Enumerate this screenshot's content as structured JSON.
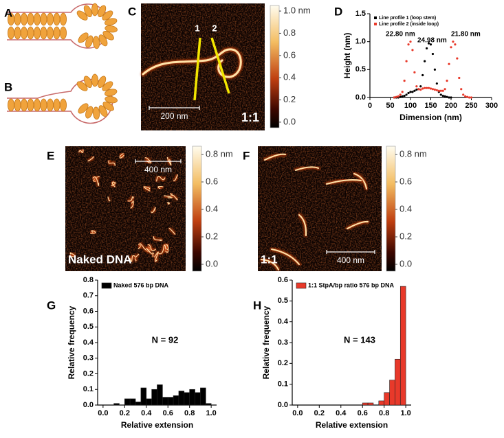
{
  "panel_labels": [
    "A",
    "B",
    "C",
    "D",
    "E",
    "F",
    "G",
    "H"
  ],
  "images": [
    {
      "labels": [
        "1",
        "2",
        "1:1"
      ],
      "scale_bar": "200 nm",
      "clim": [
        -0.05,
        1.05
      ],
      "colorbar_ticks": [
        {
          "value": 1.0,
          "label": "1.0 nm"
        },
        0.8,
        0.6,
        0.4,
        0.2,
        {
          "value": 0,
          "label": "0.0"
        }
      ]
    },
    {
      "labels": [
        "Naked DNA"
      ],
      "scale_bar": "400 nm",
      "clim": [
        -0.05,
        0.86
      ],
      "colorbar_ticks": [
        {
          "value": 0.8,
          "label": "0.8 nm"
        },
        0.6,
        0.4,
        0.2,
        {
          "value": 0,
          "label": "0.0"
        }
      ]
    },
    {
      "labels": [
        "1:1"
      ],
      "scale_bar": "400 nm",
      "clim": [
        -0.05,
        0.86
      ],
      "colorbar_ticks": [
        {
          "value": 0.8,
          "label": "0.8 nm"
        },
        0.6,
        0.4,
        0.2,
        {
          "value": 0,
          "label": "0.0"
        }
      ]
    }
  ],
  "chart_data": [
    {
      "type": "scatter",
      "xlabel": "Dimension (nm)",
      "ylabel": "Height (nm)",
      "xlim": [
        0,
        300
      ],
      "xticks": [
        0,
        50,
        100,
        150,
        200,
        250,
        300
      ],
      "ylim": [
        0,
        1.5
      ],
      "yticks": [
        {
          "value": 0,
          "label": "0.0"
        },
        0.5,
        {
          "value": 1,
          "label": "1.0"
        },
        1.5
      ],
      "annotations": [
        "22.80 nm",
        "24.98 nm",
        "21.80 nm"
      ],
      "series": [
        {
          "name": "Line profile 1 (loop stem)",
          "color": "#000000",
          "x": [
            60,
            65,
            70,
            75,
            80,
            85,
            90,
            95,
            100,
            105,
            110,
            115,
            120,
            125,
            130,
            135,
            140,
            145,
            150,
            155,
            160,
            165,
            170,
            175,
            180,
            185,
            190,
            195,
            200
          ],
          "values": [
            0,
            0,
            0,
            0.01,
            0.02,
            0.03,
            0.05,
            0.08,
            0.1,
            0.1,
            0.12,
            0.14,
            0.15,
            0.2,
            0.4,
            0.65,
            0.88,
            0.97,
            0.95,
            0.78,
            0.5,
            0.25,
            0.1,
            0.05,
            0.03,
            0.02,
            0.01,
            0,
            0
          ]
        },
        {
          "name": "Line profile 2 (inside loop)",
          "color": "#e8392a",
          "x": [
            60,
            65,
            70,
            75,
            80,
            85,
            90,
            95,
            100,
            105,
            110,
            115,
            120,
            125,
            130,
            135,
            140,
            145,
            150,
            155,
            160,
            165,
            170,
            175,
            180,
            185,
            190,
            195,
            200,
            205,
            210,
            215,
            220,
            225,
            230,
            235,
            240,
            245,
            250
          ],
          "values": [
            0,
            0.01,
            0.02,
            0.05,
            0.1,
            0.3,
            0.65,
            0.95,
            1.0,
            0.85,
            0.45,
            0.2,
            0.15,
            0.14,
            0.16,
            0.17,
            0.17,
            0.17,
            0.16,
            0.15,
            0.14,
            0.13,
            0.12,
            0.12,
            0.12,
            0.15,
            0.3,
            0.6,
            0.9,
            1.0,
            0.95,
            0.7,
            0.35,
            0.15,
            0.05,
            0.02,
            0.01,
            0,
            0
          ]
        }
      ]
    },
    {
      "type": "histogram",
      "xlabel": "Relative extension",
      "ylabel": "Relative frequency",
      "annotation": "N = 92",
      "xlim": [
        -0.05,
        1.05
      ],
      "xticks": [
        {
          "value": 0,
          "label": "0.0"
        },
        0.2,
        0.4,
        0.6,
        0.8,
        {
          "value": 1,
          "label": "1.0"
        }
      ],
      "ylim": [
        0,
        0.8
      ],
      "yticks": [
        {
          "value": 0,
          "label": "0.0"
        },
        0.1,
        0.2,
        0.3,
        0.4,
        0.5,
        0.6,
        0.7,
        0.8
      ],
      "bins": [
        0,
        0.05,
        0.1,
        0.15,
        0.2,
        0.25,
        0.3,
        0.35,
        0.4,
        0.45,
        0.5,
        0.55,
        0.6,
        0.65,
        0.7,
        0.75,
        0.8,
        0.85,
        0.9,
        0.95,
        1.0
      ],
      "series": [
        {
          "name": "Naked 576 bp DNA",
          "color": "#000000",
          "values": [
            0,
            0,
            0.01,
            0,
            0.04,
            0.04,
            0.02,
            0.11,
            0.04,
            0.1,
            0.13,
            0.05,
            0.05,
            0.06,
            0.09,
            0.08,
            0.1,
            0.08,
            0.11,
            0.01
          ]
        }
      ]
    },
    {
      "type": "histogram",
      "xlabel": "Relative extension",
      "ylabel": "Relative frequency",
      "annotation": "N = 143",
      "xlim": [
        -0.05,
        1.05
      ],
      "xticks": [
        {
          "value": 0,
          "label": "0.0"
        },
        0.2,
        0.4,
        0.6,
        0.8,
        {
          "value": 1,
          "label": "1.0"
        }
      ],
      "ylim": [
        0,
        0.6
      ],
      "yticks": [
        {
          "value": 0,
          "label": "0.0"
        },
        0.1,
        0.2,
        0.3,
        0.4,
        0.5,
        0.6
      ],
      "bins": [
        0,
        0.05,
        0.1,
        0.15,
        0.2,
        0.25,
        0.3,
        0.35,
        0.4,
        0.45,
        0.5,
        0.55,
        0.6,
        0.65,
        0.7,
        0.75,
        0.8,
        0.85,
        0.9,
        0.95,
        1.0
      ],
      "series": [
        {
          "name": "1:1 StpA/bp ratio 576 bp DNA",
          "color": "#e8392a",
          "values": [
            0,
            0,
            0,
            0,
            0,
            0,
            0,
            0,
            0,
            0,
            0,
            0,
            0.01,
            0.01,
            0,
            0.02,
            0.06,
            0.12,
            0.22,
            0.57
          ]
        }
      ]
    }
  ]
}
